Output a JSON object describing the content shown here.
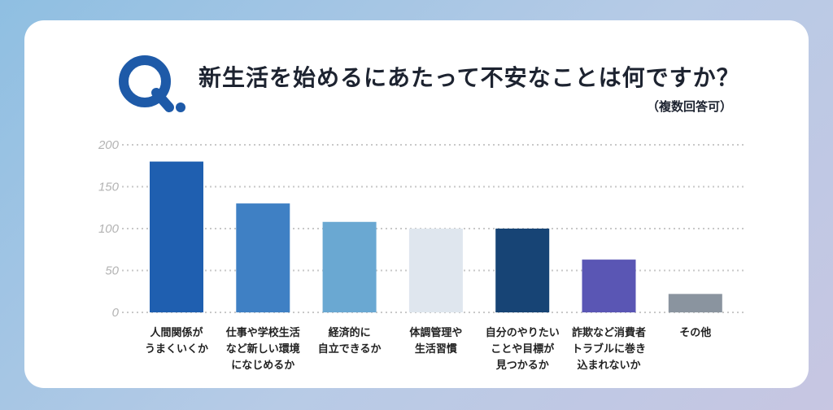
{
  "header": {
    "title": "新生活を始めるにあたって不安なことは何ですか？",
    "subtitle": "（複数回答可）",
    "logo_icon": "q-magnifier-icon",
    "logo_color": "#1e5aa8"
  },
  "chart_data": {
    "type": "bar",
    "categories": [
      [
        "人間関係が",
        "うまくいくか"
      ],
      [
        "仕事や学校生活",
        "など新しい環境",
        "になじめるか"
      ],
      [
        "経済的に",
        "自立できるか"
      ],
      [
        "体調管理や",
        "生活習慣"
      ],
      [
        "自分のやりたい",
        "ことや目標が",
        "見つかるか"
      ],
      [
        "詐欺など消費者",
        "トラブルに巻き",
        "込まれないか"
      ],
      [
        "その他"
      ]
    ],
    "values": [
      180,
      130,
      108,
      100,
      100,
      63,
      22
    ],
    "colors": [
      "#1f5fb0",
      "#3f80c4",
      "#6aa8d2",
      "#dfe6ee",
      "#174475",
      "#5a56b4",
      "#8a949f"
    ],
    "yticks": [
      0,
      50,
      100,
      150,
      200
    ],
    "ylim": [
      0,
      200
    ],
    "grid": true,
    "legend": "none",
    "title": "新生活を始めるにあたって不安なことは何ですか？",
    "xlabel": "",
    "ylabel": ""
  }
}
